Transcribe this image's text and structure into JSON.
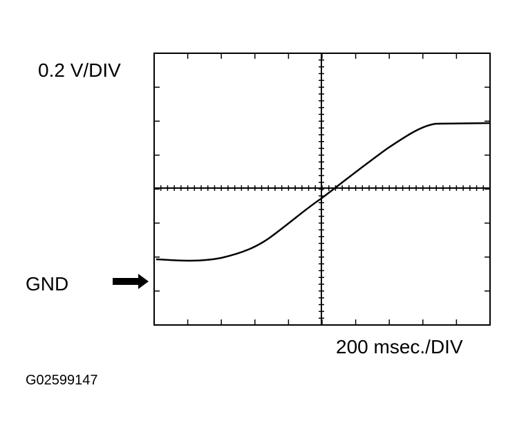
{
  "scale": {
    "volts_per_div": "0.2 V/DIV",
    "time_per_div": "200 msec./DIV"
  },
  "ground_label": "GND",
  "figure_id": "G02599147"
}
